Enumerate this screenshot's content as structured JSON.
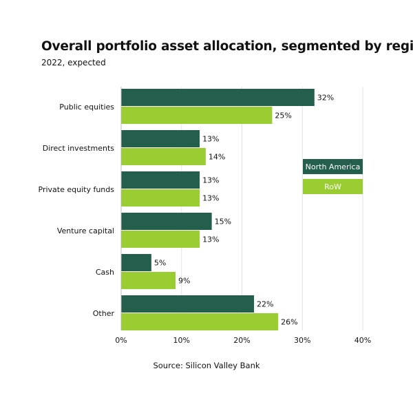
{
  "chart_data": {
    "type": "bar",
    "orientation": "horizontal",
    "title": "Overall portfolio asset allocation, segmented by region",
    "subtitle": "2022, expected",
    "source": "Source: Silicon Valley Bank",
    "categories": [
      "Public equities",
      "Direct investments",
      "Private equity funds",
      "Venture capital",
      "Cash",
      "Other"
    ],
    "series": [
      {
        "name": "North America",
        "color": "#245E4C",
        "values": [
          32,
          13,
          13,
          15,
          5,
          22
        ]
      },
      {
        "name": "RoW",
        "color": "#9ACD32",
        "values": [
          25,
          14,
          13,
          13,
          9,
          26
        ]
      }
    ],
    "xlim": [
      0,
      40
    ],
    "xticks": [
      0,
      10,
      20,
      30,
      40
    ],
    "value_suffix": "%",
    "grid": true,
    "legend_position": "right"
  }
}
